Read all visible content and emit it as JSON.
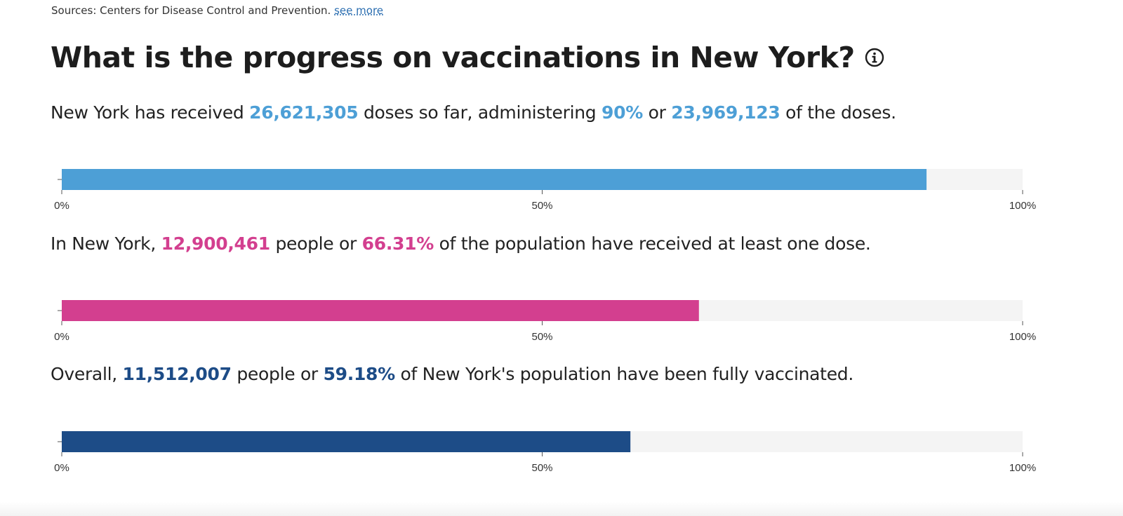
{
  "sources": {
    "text": "Sources: Centers for Disease Control and Prevention.",
    "link": "see more"
  },
  "headline": "What is the progress on vaccinations in New York?",
  "colors": {
    "light_blue": "#4d9fd6",
    "pink": "#d33f8f",
    "dark_blue": "#1d4c87",
    "track": "#f4f4f4"
  },
  "sentences": [
    {
      "p1": "New York has received ",
      "v1": "26,621,305",
      "p2": " doses so far, administering ",
      "v2": "90%",
      "p3": " or ",
      "v3": "23,969,123",
      "p4": " of the doses."
    },
    {
      "p1": "In New York, ",
      "v1": "12,900,461",
      "p2": " people or ",
      "v2": "66.31%",
      "p3": " of the population have received at least one dose."
    },
    {
      "p1": "Overall, ",
      "v1": "11,512,007",
      "p2": " people or ",
      "v2": "59.18%",
      "p3": " of New York's population have been fully vaccinated."
    }
  ],
  "chart_data": [
    {
      "type": "bar",
      "orientation": "horizontal",
      "series": [
        {
          "name": "Doses administered",
          "values": [
            90
          ]
        }
      ],
      "xlim": [
        0,
        100
      ],
      "xticks": [
        "0%",
        "50%",
        "100%"
      ],
      "color": "#4d9fd6"
    },
    {
      "type": "bar",
      "orientation": "horizontal",
      "series": [
        {
          "name": "At least one dose",
          "values": [
            66.31
          ]
        }
      ],
      "xlim": [
        0,
        100
      ],
      "xticks": [
        "0%",
        "50%",
        "100%"
      ],
      "color": "#d33f8f"
    },
    {
      "type": "bar",
      "orientation": "horizontal",
      "series": [
        {
          "name": "Fully vaccinated",
          "values": [
            59.18
          ]
        }
      ],
      "xlim": [
        0,
        100
      ],
      "xticks": [
        "0%",
        "50%",
        "100%"
      ],
      "color": "#1d4c87"
    }
  ]
}
